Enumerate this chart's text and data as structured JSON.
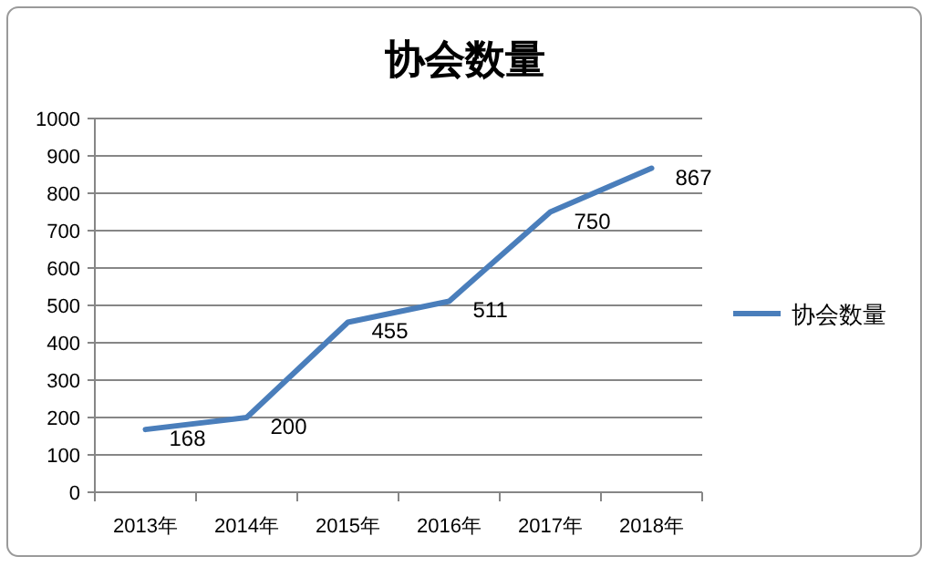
{
  "chart_data": {
    "type": "line",
    "title": "协会数量",
    "categories": [
      "2013年",
      "2014年",
      "2015年",
      "2016年",
      "2017年",
      "2018年"
    ],
    "series": [
      {
        "name": "协会数量",
        "color": "#4a7ebb",
        "values": [
          168,
          200,
          455,
          511,
          750,
          867
        ]
      }
    ],
    "ylim": [
      0,
      1000
    ],
    "yticks": [
      0,
      100,
      200,
      300,
      400,
      500,
      600,
      700,
      800,
      900,
      1000
    ],
    "grid": "y",
    "legend": "right",
    "data_labels": true,
    "marker": "none",
    "line_style": "solid"
  }
}
